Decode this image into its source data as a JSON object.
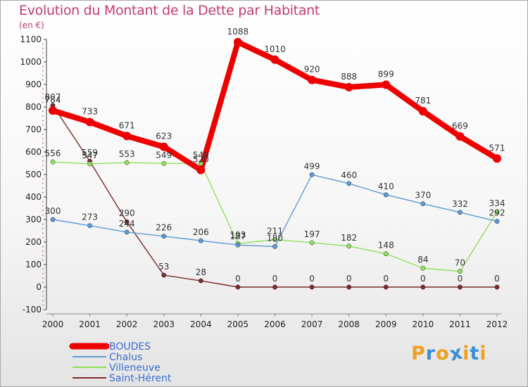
{
  "header": {
    "title": "Evolution du Montant de la Dette par Habitant",
    "unit": "(en €)"
  },
  "logo": {
    "letters": [
      "P",
      "r",
      "o",
      "x",
      "i",
      "t",
      "i"
    ],
    "colors": [
      "#f0a020",
      "#3b8fd6",
      "#f0a020",
      "#3b8fd6",
      "#f0a020",
      "#3b8fd6",
      "#f0a020"
    ]
  },
  "chart_data": {
    "type": "line",
    "title": "Evolution du Montant de la Dette par Habitant",
    "ylabel": "(en €)",
    "x": [
      2000,
      2001,
      2002,
      2003,
      2004,
      2005,
      2006,
      2007,
      2008,
      2009,
      2010,
      2011,
      2012
    ],
    "ylim": [
      -100,
      1100
    ],
    "yticks": [
      -100,
      0,
      100,
      200,
      300,
      400,
      500,
      600,
      700,
      800,
      900,
      1000,
      1100
    ],
    "grid": false,
    "legend_position": "bottom-left",
    "series": [
      {
        "name": "BOUDES",
        "color": "#ee0000",
        "values": [
          784,
          733,
          671,
          623,
          520,
          1088,
          1010,
          920,
          888,
          899,
          781,
          669,
          571
        ]
      },
      {
        "name": "Chalus",
        "color": "#5b9bd5",
        "values": [
          300,
          273,
          244,
          226,
          206,
          187,
          180,
          499,
          460,
          410,
          370,
          332,
          292
        ]
      },
      {
        "name": "Villeneuve",
        "color": "#8fe05a",
        "values": [
          556,
          547,
          553,
          549,
          549,
          193,
          211,
          197,
          182,
          148,
          84,
          70,
          334
        ]
      },
      {
        "name": "Saint-Hérent",
        "color": "#7b2a2a",
        "values": [
          807,
          559,
          290,
          53,
          28,
          0,
          0,
          0,
          0,
          0,
          0,
          0,
          0
        ]
      }
    ]
  }
}
